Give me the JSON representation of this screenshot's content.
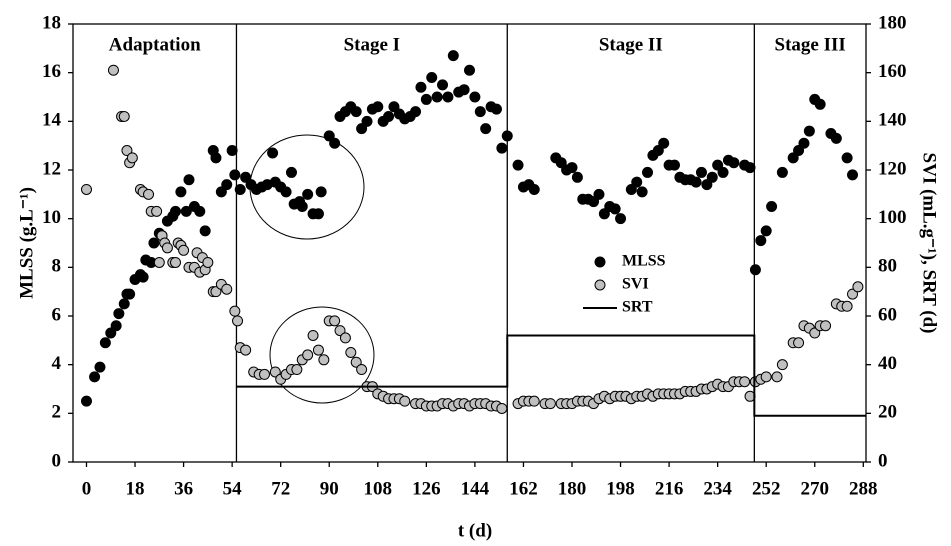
{
  "chart_data": {
    "type": "scatter",
    "xlabel": "t (d)",
    "ylabel": "MLSS (g.L⁻¹)",
    "y2label": "SVI (mL.g⁻¹), SRT (d)",
    "xlim": [
      -5,
      289
    ],
    "ylim": [
      0,
      18
    ],
    "y2lim": [
      0,
      180
    ],
    "xticks": [
      0,
      18,
      36,
      54,
      72,
      90,
      108,
      126,
      144,
      162,
      180,
      198,
      216,
      234,
      252,
      270,
      288
    ],
    "yticks": [
      0,
      2,
      4,
      6,
      8,
      10,
      12,
      14,
      16,
      18
    ],
    "y2ticks": [
      0,
      20,
      40,
      60,
      80,
      100,
      120,
      140,
      160,
      180
    ],
    "stage_boundaries": [
      55.6,
      156,
      247.6
    ],
    "stage_labels": [
      "Adaptation",
      "Stage I",
      "Stage II",
      "Stage III"
    ],
    "series": [
      {
        "name": "MLSS",
        "color": "#000000",
        "marker": "circle",
        "x": [
          0,
          3,
          5,
          7,
          9,
          11,
          12,
          14,
          15,
          16,
          18,
          20,
          21,
          22,
          24,
          25,
          27,
          28,
          30,
          32,
          33,
          35,
          37,
          38,
          40,
          42,
          44,
          47,
          48,
          50,
          52,
          54,
          55,
          57,
          59,
          61,
          63,
          65,
          67,
          69,
          70,
          72,
          74,
          76,
          77,
          79,
          80,
          82,
          84,
          86,
          87,
          90,
          92,
          94,
          96,
          98,
          100,
          102,
          104,
          106,
          108,
          110,
          112,
          114,
          116,
          118,
          120,
          122,
          124,
          126,
          128,
          130,
          132,
          134,
          136,
          138,
          140,
          142,
          144,
          146,
          148,
          150,
          152,
          154,
          156,
          160,
          162,
          164,
          166,
          174,
          176,
          178,
          180,
          182,
          184,
          186,
          188,
          190,
          192,
          194,
          196,
          198,
          202,
          204,
          206,
          208,
          210,
          212,
          214,
          216,
          218,
          220,
          222,
          224,
          226,
          228,
          230,
          232,
          234,
          236,
          238,
          240,
          244,
          246,
          248,
          250,
          252,
          254,
          258,
          262,
          264,
          266,
          268,
          270,
          272,
          276,
          278,
          282,
          284
        ],
        "values": [
          2.5,
          3.5,
          3.9,
          4.9,
          5.3,
          5.6,
          6.1,
          6.5,
          6.9,
          6.9,
          7.5,
          7.7,
          7.6,
          8.3,
          8.2,
          9.0,
          9.4,
          9.3,
          9.9,
          10.1,
          10.3,
          11.1,
          10.3,
          11.6,
          10.5,
          10.3,
          9.5,
          12.8,
          12.5,
          11.1,
          11.4,
          12.8,
          11.8,
          11.2,
          11.7,
          11.4,
          11.2,
          11.3,
          11.4,
          12.7,
          11.5,
          11.3,
          11.1,
          11.9,
          10.6,
          10.7,
          10.5,
          11.0,
          10.2,
          10.2,
          11.1,
          13.4,
          13.1,
          14.2,
          14.4,
          14.6,
          14.4,
          13.7,
          14.0,
          14.5,
          14.6,
          14.0,
          14.2,
          14.6,
          14.3,
          14.1,
          14.2,
          14.4,
          15.4,
          14.9,
          15.8,
          15.0,
          15.5,
          15.0,
          16.7,
          15.2,
          15.3,
          16.1,
          15.0,
          14.4,
          13.7,
          14.6,
          14.5,
          12.9,
          13.4,
          12.2,
          11.3,
          11.4,
          11.2,
          12.5,
          12.3,
          12.0,
          12.1,
          11.7,
          10.8,
          10.8,
          10.7,
          11.0,
          10.2,
          10.5,
          10.4,
          10.0,
          11.2,
          11.5,
          11.1,
          11.9,
          12.6,
          12.8,
          13.1,
          12.2,
          12.2,
          11.7,
          11.6,
          11.6,
          11.5,
          11.9,
          11.4,
          11.7,
          12.2,
          11.9,
          12.4,
          12.3,
          12.2,
          12.1,
          7.9,
          9.1,
          9.5,
          10.5,
          11.9,
          12.5,
          12.8,
          13.1,
          13.6,
          14.9,
          14.7,
          13.5,
          13.3,
          12.5,
          11.8
        ]
      },
      {
        "name": "SVI",
        "color": "#c0c0c0",
        "marker": "circle",
        "axis": "y2",
        "x": [
          0,
          10,
          13,
          14,
          15,
          16,
          17,
          20,
          21,
          23,
          24,
          26,
          27,
          28,
          29,
          30,
          32,
          33,
          34,
          35,
          36,
          38,
          40,
          41,
          42,
          43,
          44,
          45,
          47,
          48,
          50,
          52,
          55,
          56,
          57,
          59,
          62,
          64,
          66,
          70,
          72,
          74,
          76,
          78,
          80,
          82,
          84,
          86,
          88,
          90,
          92,
          94,
          96,
          98,
          100,
          102,
          104,
          106,
          108,
          110,
          112,
          114,
          116,
          118,
          122,
          124,
          126,
          128,
          130,
          132,
          134,
          136,
          138,
          140,
          142,
          144,
          146,
          148,
          150,
          152,
          154,
          160,
          162,
          164,
          166,
          170,
          172,
          176,
          178,
          180,
          182,
          184,
          186,
          188,
          190,
          192,
          194,
          196,
          198,
          200,
          202,
          204,
          206,
          208,
          210,
          212,
          214,
          216,
          218,
          220,
          222,
          224,
          226,
          228,
          230,
          232,
          234,
          236,
          238,
          240,
          242,
          244,
          246,
          248,
          250,
          252,
          256,
          258,
          262,
          264,
          266,
          268,
          270,
          272,
          274,
          278,
          280,
          282,
          284,
          286
        ],
        "values": [
          112,
          161,
          142,
          142,
          128,
          123,
          125,
          112,
          111,
          110,
          103,
          103,
          82,
          93,
          90,
          88,
          82,
          82,
          90,
          89,
          87,
          80,
          80,
          86,
          78,
          84,
          79,
          82,
          70,
          70,
          73,
          71,
          62,
          58,
          47,
          46,
          37,
          36,
          36,
          37,
          34,
          36,
          38,
          38,
          42,
          44,
          52,
          46,
          42,
          58,
          58,
          54,
          51,
          45,
          41,
          38,
          31,
          31,
          28,
          27,
          26,
          26,
          26,
          25,
          24,
          24,
          23,
          23,
          23,
          24,
          24,
          23,
          24,
          24,
          23,
          24,
          24,
          24,
          23,
          23,
          22,
          24,
          25,
          25,
          25,
          24,
          24,
          24,
          24,
          24,
          25,
          25,
          25,
          24,
          26,
          27,
          26,
          27,
          27,
          27,
          26,
          27,
          27,
          28,
          27,
          28,
          28,
          28,
          28,
          28,
          29,
          29,
          29,
          30,
          30,
          31,
          32,
          31,
          31,
          33,
          33,
          33,
          27,
          33,
          34,
          35,
          35,
          40,
          49,
          49,
          56,
          55,
          53,
          56,
          56,
          65,
          64,
          64,
          69,
          72
        ]
      },
      {
        "name": "SRT",
        "color": "#000000",
        "marker": "line",
        "axis": "y2",
        "x": [
          55.6,
          156,
          156,
          247.6,
          247.6,
          289
        ],
        "values": [
          31,
          31,
          52,
          52,
          19,
          19
        ]
      }
    ]
  }
}
